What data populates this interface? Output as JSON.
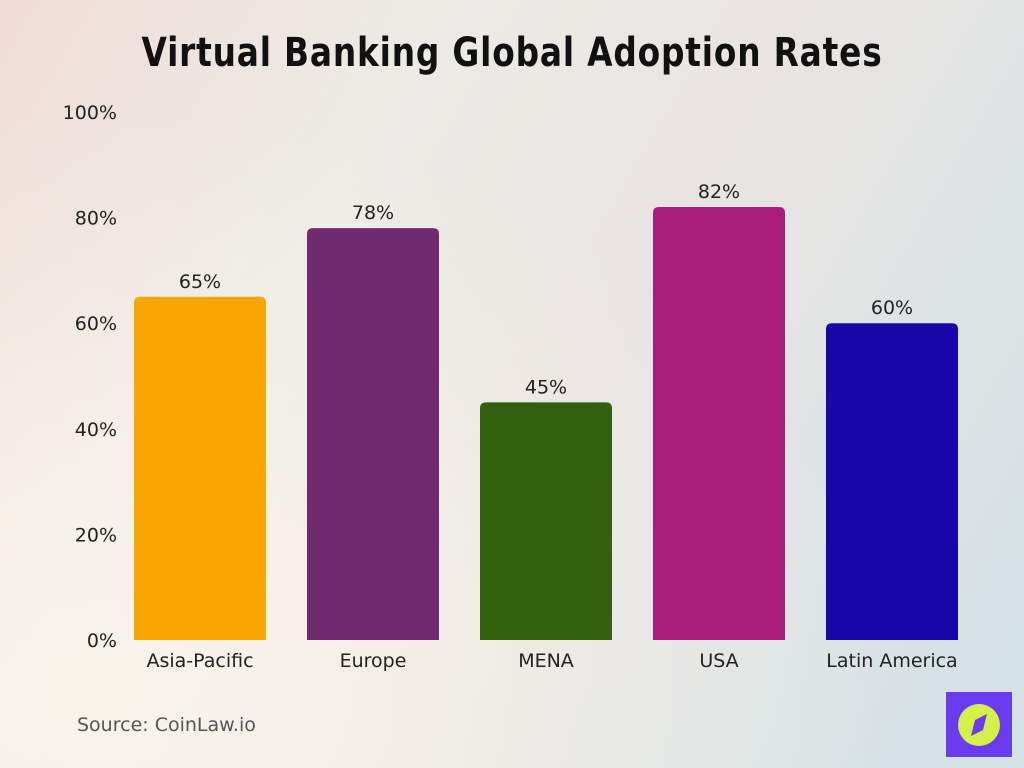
{
  "chart_data": {
    "type": "bar",
    "title": "Virtual Banking Global Adoption Rates",
    "categories": [
      "Asia-Pacific",
      "Europe",
      "MENA",
      "USA",
      "Latin America"
    ],
    "values": [
      65,
      78,
      45,
      82,
      60
    ],
    "data_labels": [
      "65%",
      "78%",
      "45%",
      "82%",
      "60%"
    ],
    "colors": [
      "#f9a602",
      "#722a6f",
      "#33600f",
      "#a81d78",
      "#1b06a9"
    ],
    "ylim": [
      0,
      100
    ],
    "yticks": [
      0,
      20,
      40,
      60,
      80,
      100
    ],
    "ytick_labels": [
      "0%",
      "20%",
      "40%",
      "60%",
      "80%",
      "100%"
    ],
    "xlabel": "",
    "ylabel": "",
    "grid": false,
    "legend": "none"
  },
  "source": "Source: CoinLaw.io",
  "logo": {
    "icon": "compass-icon",
    "bg_color": "#6b3bf0",
    "circle_color": "#d4f04a"
  }
}
